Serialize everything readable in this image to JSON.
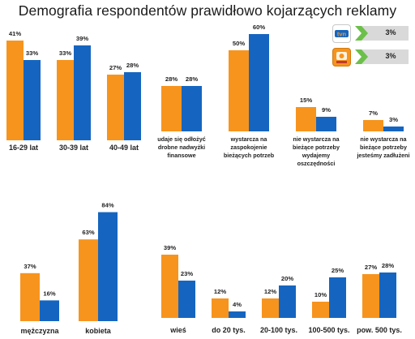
{
  "chart_data": {
    "title": "Demografia respondentów prawidłowo kojarzących reklamy",
    "type": "bar",
    "series": [
      {
        "name": "TVN",
        "color": "#F7941D"
      },
      {
        "name": "Polsat",
        "color": "#1565C0"
      }
    ],
    "legend": [
      {
        "logo": "tvn",
        "value_label": "3%"
      },
      {
        "logo": "polsat",
        "value_label": "3%"
      }
    ],
    "panels": [
      {
        "group": "age",
        "categories": [
          "16-29 lat",
          "30-39 lat",
          "40-49 lat"
        ],
        "values": [
          [
            41,
            33
          ],
          [
            33,
            39
          ],
          [
            27,
            28
          ]
        ]
      },
      {
        "group": "financial_situation",
        "categories": [
          "udaje się odłożyć drobne nadwyżki finansowe",
          "wystarcza na zaspokojenie bieżących potrzeb",
          "nie wystarcza na bieżące potrzeby wydajemy oszczędności",
          "nie wystarcza na bieżące potrzeby jesteśmy zadłużeni"
        ],
        "category_lines": [
          [
            "udaje się odłożyć",
            "drobne nadwyżki",
            "finansowe"
          ],
          [
            "wystarcza na",
            "zaspokojenie",
            "bieżących potrzeb"
          ],
          [
            "nie wystarcza na",
            "bieżące potrzeby",
            "wydajemy",
            "oszczędności"
          ],
          [
            "nie wystarcza na",
            "bieżące potrzeby",
            "jesteśmy zadłużeni"
          ]
        ],
        "values": [
          [
            28,
            28
          ],
          [
            50,
            60
          ],
          [
            15,
            9
          ],
          [
            7,
            3
          ]
        ]
      },
      {
        "group": "gender",
        "categories": [
          "mężczyzna",
          "kobieta"
        ],
        "values": [
          [
            37,
            16
          ],
          [
            63,
            84
          ]
        ]
      },
      {
        "group": "place_of_residence",
        "categories": [
          "wieś",
          "do 20 tys.",
          "20-100 tys.",
          "100-500 tys.",
          "pow. 500 tys."
        ],
        "values": [
          [
            39,
            23
          ],
          [
            12,
            4
          ],
          [
            12,
            20
          ],
          [
            10,
            25
          ],
          [
            27,
            28
          ]
        ]
      }
    ]
  }
}
